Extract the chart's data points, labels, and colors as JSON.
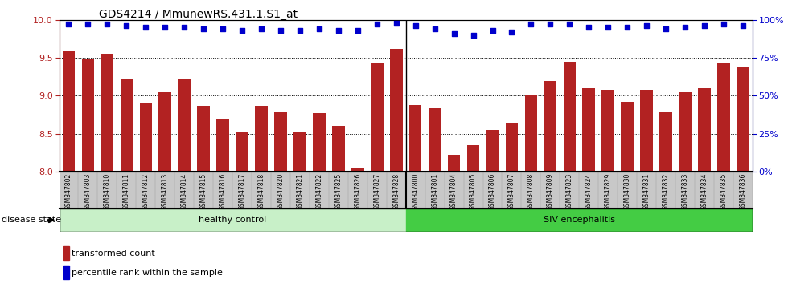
{
  "title": "GDS4214 / MmunewRS.431.1.S1_at",
  "samples": [
    "GSM347802",
    "GSM347803",
    "GSM347810",
    "GSM347811",
    "GSM347812",
    "GSM347813",
    "GSM347814",
    "GSM347815",
    "GSM347816",
    "GSM347817",
    "GSM347818",
    "GSM347820",
    "GSM347821",
    "GSM347822",
    "GSM347825",
    "GSM347826",
    "GSM347827",
    "GSM347828",
    "GSM347800",
    "GSM347801",
    "GSM347804",
    "GSM347805",
    "GSM347806",
    "GSM347807",
    "GSM347808",
    "GSM347809",
    "GSM347823",
    "GSM347824",
    "GSM347829",
    "GSM347830",
    "GSM347831",
    "GSM347832",
    "GSM347833",
    "GSM347834",
    "GSM347835",
    "GSM347836"
  ],
  "bar_values": [
    9.6,
    9.48,
    9.55,
    9.22,
    8.9,
    9.05,
    9.22,
    8.87,
    8.7,
    8.52,
    8.87,
    8.78,
    8.52,
    8.77,
    8.6,
    8.05,
    9.43,
    9.62,
    8.88,
    8.85,
    8.22,
    8.35,
    8.55,
    8.65,
    9.0,
    9.2,
    9.45,
    9.1,
    9.08,
    8.92,
    9.08,
    8.78,
    9.05,
    9.1,
    9.43,
    9.38
  ],
  "percentile_values": [
    97,
    97,
    97,
    96,
    95,
    95,
    95,
    94,
    94,
    93,
    94,
    93,
    93,
    94,
    93,
    93,
    97,
    98,
    96,
    94,
    91,
    90,
    93,
    92,
    97,
    97,
    97,
    95,
    95,
    95,
    96,
    94,
    95,
    96,
    97,
    96
  ],
  "healthy_count": 18,
  "ylim_left": [
    8.0,
    10.0
  ],
  "ylim_right": [
    0,
    100
  ],
  "bar_color": "#B22222",
  "dot_color": "#0000CC",
  "healthy_color": "#C8F0C8",
  "siv_color": "#44CC44",
  "label_bg_color": "#C8C8C8",
  "yticks_left": [
    8.0,
    8.5,
    9.0,
    9.5,
    10.0
  ],
  "yticks_right": [
    0,
    25,
    50,
    75,
    100
  ],
  "legend_items": [
    "transformed count",
    "percentile rank within the sample"
  ]
}
